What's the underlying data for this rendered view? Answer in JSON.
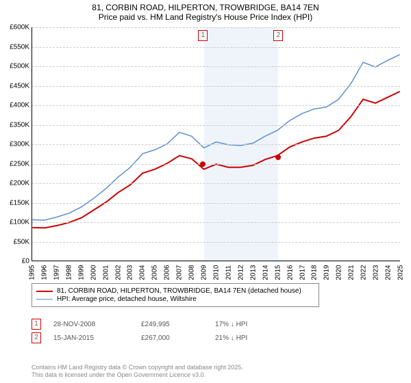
{
  "title_line1": "81, CORBIN ROAD, HILPERTON, TROWBRIDGE, BA14 7EN",
  "title_line2": "Price paid vs. HM Land Registry's House Price Index (HPI)",
  "chart": {
    "type": "line",
    "x_years": [
      1995,
      1996,
      1997,
      1998,
      1999,
      2000,
      2001,
      2002,
      2003,
      2004,
      2005,
      2006,
      2007,
      2008,
      2009,
      2010,
      2011,
      2012,
      2013,
      2014,
      2015,
      2016,
      2017,
      2018,
      2019,
      2020,
      2021,
      2022,
      2023,
      2024,
      2025
    ],
    "ylim": [
      0,
      600000
    ],
    "y_ticks": [
      0,
      50000,
      100000,
      150000,
      200000,
      250000,
      300000,
      350000,
      400000,
      450000,
      500000,
      550000,
      600000
    ],
    "y_tick_labels": [
      "£0",
      "£50K",
      "£100K",
      "£150K",
      "£200K",
      "£250K",
      "£300K",
      "£350K",
      "£400K",
      "£450K",
      "£500K",
      "£550K",
      "£600K"
    ],
    "grid_color": "#cccccc",
    "background_color": "#ffffff",
    "band_color": "#eef4fa",
    "axis_fontsize": 10,
    "series": [
      {
        "name": "price_paid",
        "label": "81, CORBIN ROAD, HILPERTON, TROWBRIDGE, BA14 7EN (detached house)",
        "color": "#cc0000",
        "width": 2,
        "y": [
          85000,
          84000,
          90000,
          98000,
          110000,
          130000,
          150000,
          175000,
          195000,
          225000,
          235000,
          250000,
          270000,
          262000,
          235000,
          248000,
          240000,
          240000,
          245000,
          260000,
          270000,
          292000,
          305000,
          315000,
          320000,
          335000,
          370000,
          415000,
          405000,
          420000,
          435000
        ]
      },
      {
        "name": "hpi",
        "label": "HPI: Average price, detached house, Wiltshire",
        "color": "#5b8fcf",
        "width": 1.5,
        "y": [
          105000,
          104000,
          112000,
          122000,
          138000,
          160000,
          185000,
          215000,
          240000,
          275000,
          285000,
          300000,
          330000,
          320000,
          290000,
          305000,
          298000,
          296000,
          302000,
          320000,
          335000,
          360000,
          378000,
          390000,
          395000,
          415000,
          455000,
          510000,
          498000,
          515000,
          530000
        ]
      }
    ],
    "sale_markers": [
      {
        "n": "1",
        "year": 2008.9,
        "price": 249995,
        "color": "#cc0000"
      },
      {
        "n": "2",
        "year": 2015.04,
        "price": 267000,
        "color": "#cc0000"
      }
    ],
    "band": {
      "from_year": 2009,
      "to_year": 2015
    }
  },
  "legend": {
    "items": [
      {
        "color": "#cc0000",
        "width": 2,
        "label": "81, CORBIN ROAD, HILPERTON, TROWBRIDGE, BA14 7EN (detached house)"
      },
      {
        "color": "#5b8fcf",
        "width": 1.5,
        "label": "HPI: Average price, detached house, Wiltshire"
      }
    ]
  },
  "sales": [
    {
      "n": "1",
      "color": "#cc0000",
      "date": "28-NOV-2008",
      "price": "£249,995",
      "hpi": "17% ↓ HPI"
    },
    {
      "n": "2",
      "color": "#cc0000",
      "date": "15-JAN-2015",
      "price": "£267,000",
      "hpi": "21% ↓ HPI"
    }
  ],
  "footer_line1": "Contains HM Land Registry data © Crown copyright and database right 2025.",
  "footer_line2": "This data is licensed under the Open Government Licence v3.0."
}
